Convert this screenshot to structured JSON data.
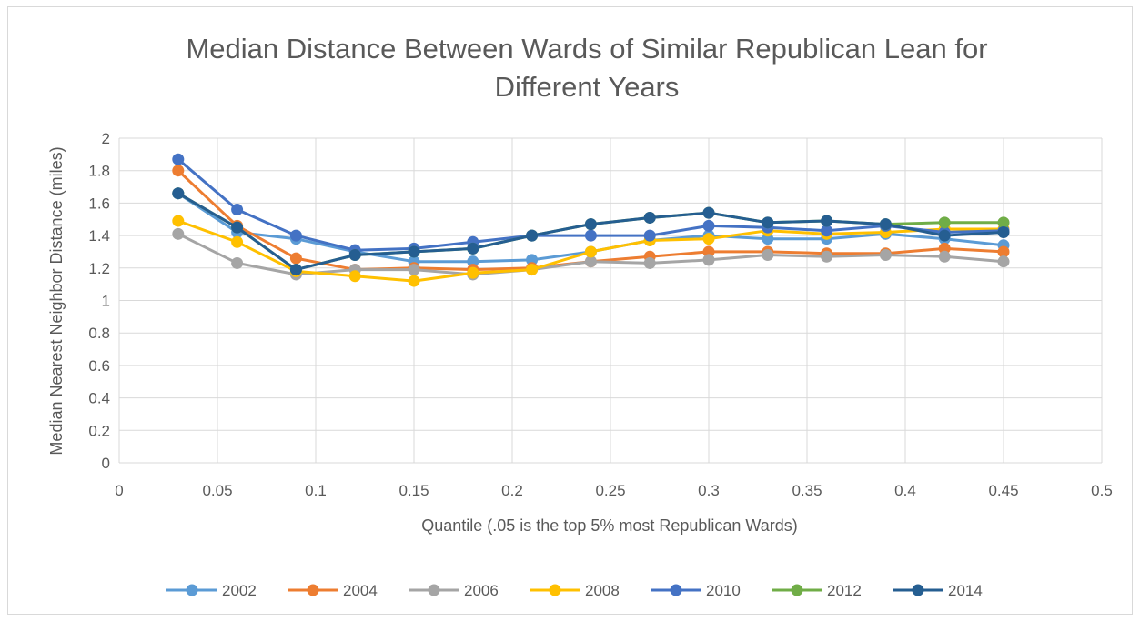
{
  "chart_data": {
    "type": "line",
    "title_lines": [
      "Median Distance Between Wards of Similar Republican Lean for",
      "Different Years"
    ],
    "xlabel": "Quantile (.05 is the top 5% most Republican Wards)",
    "ylabel": "Median Nearest Neighbor Distance (miles)",
    "xlim": [
      0,
      0.5
    ],
    "ylim": [
      0,
      2
    ],
    "x_ticks": [
      "0",
      "0.05",
      "0.1",
      "0.15",
      "0.2",
      "0.25",
      "0.3",
      "0.35",
      "0.4",
      "0.45",
      "0.5"
    ],
    "y_ticks": [
      "0",
      "0.2",
      "0.4",
      "0.6",
      "0.8",
      "1",
      "1.2",
      "1.4",
      "1.6",
      "1.8",
      "2"
    ],
    "grid": true,
    "legend_position": "bottom",
    "x": [
      0.03,
      0.06,
      0.09,
      0.12,
      0.15,
      0.18,
      0.21,
      0.24,
      0.27,
      0.3,
      0.33,
      0.36,
      0.39,
      0.42,
      0.45
    ],
    "series": [
      {
        "name": "2002",
        "color": "#5b9bd5",
        "values": [
          1.66,
          1.42,
          1.38,
          1.3,
          1.24,
          1.24,
          1.25,
          1.3,
          1.37,
          1.4,
          1.38,
          1.38,
          1.41,
          1.38,
          1.34
        ]
      },
      {
        "name": "2004",
        "color": "#ed7d31",
        "values": [
          1.8,
          1.46,
          1.26,
          1.19,
          1.2,
          1.19,
          1.2,
          1.24,
          1.27,
          1.3,
          1.3,
          1.29,
          1.29,
          1.32,
          1.3
        ]
      },
      {
        "name": "2006",
        "color": "#a5a5a5",
        "values": [
          1.41,
          1.23,
          1.16,
          1.19,
          1.19,
          1.16,
          1.19,
          1.24,
          1.23,
          1.25,
          1.28,
          1.27,
          1.28,
          1.27,
          1.24
        ]
      },
      {
        "name": "2008",
        "color": "#ffc000",
        "values": [
          1.49,
          1.36,
          1.18,
          1.15,
          1.12,
          1.17,
          1.19,
          1.3,
          1.37,
          1.38,
          1.43,
          1.41,
          1.42,
          1.44,
          1.44
        ]
      },
      {
        "name": "2010",
        "color": "#4472c4",
        "values": [
          1.87,
          1.56,
          1.4,
          1.31,
          1.32,
          1.36,
          1.4,
          1.4,
          1.4,
          1.46,
          1.45,
          1.43,
          1.46,
          1.42,
          1.43
        ]
      },
      {
        "name": "2012",
        "color": "#70ad47",
        "values": [
          1.66,
          1.45,
          1.19,
          1.28,
          1.3,
          1.32,
          1.4,
          1.47,
          1.51,
          1.54,
          1.48,
          1.49,
          1.47,
          1.48,
          1.48
        ]
      },
      {
        "name": "2014",
        "color": "#255e91",
        "values": [
          1.66,
          1.45,
          1.19,
          1.28,
          1.3,
          1.32,
          1.4,
          1.47,
          1.51,
          1.54,
          1.48,
          1.49,
          1.47,
          1.4,
          1.42
        ]
      }
    ]
  }
}
